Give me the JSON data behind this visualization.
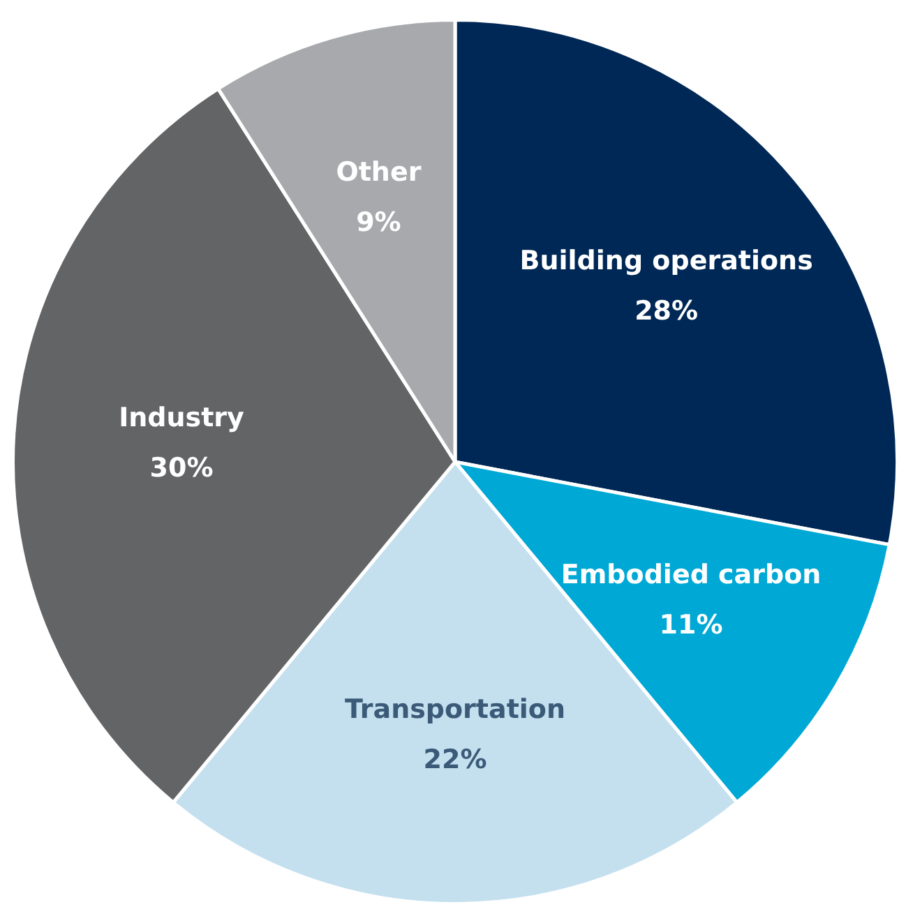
{
  "chart_data": {
    "type": "pie",
    "categories": [
      "Building operations",
      "Embodied carbon",
      "Transportation",
      "Industry",
      "Other"
    ],
    "values": [
      28,
      11,
      22,
      30,
      9
    ],
    "value_labels": [
      "28%",
      "11%",
      "22%",
      "30%",
      "9%"
    ],
    "colors": [
      "#002856",
      "#00a8d5",
      "#c4e0ef",
      "#636466",
      "#a7a9ac"
    ],
    "legend": false
  }
}
